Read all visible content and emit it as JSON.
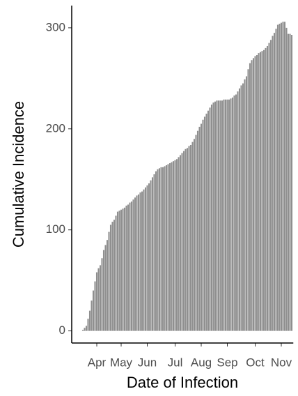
{
  "chart_data": {
    "type": "bar",
    "x_label": "Date of Infection",
    "y_label": "Cumulative Incidence",
    "categories": [
      null,
      null,
      null,
      null,
      null,
      null,
      null,
      null,
      "Apr",
      null,
      null,
      null,
      null,
      null,
      null,
      null,
      null,
      null,
      null,
      null,
      null,
      null,
      "May",
      null,
      null,
      null,
      null,
      null,
      null,
      null,
      null,
      null,
      null,
      null,
      null,
      null,
      null,
      "Jun",
      null,
      null,
      null,
      null,
      null,
      null,
      null,
      null,
      null,
      null,
      null,
      null,
      null,
      null,
      null,
      "Jul",
      null,
      null,
      null,
      null,
      null,
      null,
      null,
      null,
      null,
      null,
      null,
      null,
      null,
      null,
      "Aug",
      null,
      null,
      null,
      null,
      null,
      null,
      null,
      null,
      null,
      null,
      null,
      null,
      null,
      null,
      "Sep",
      null,
      null,
      null,
      null,
      null,
      null,
      null,
      null,
      null,
      null,
      null,
      null,
      null,
      null,
      null,
      "Oct",
      null,
      null,
      null,
      null,
      null,
      null,
      null,
      null,
      null,
      null,
      null,
      null,
      null,
      null,
      "Nov",
      null,
      null,
      null,
      null,
      null,
      null
    ],
    "values": [
      1,
      3,
      5,
      12,
      20,
      30,
      40,
      49,
      58,
      62,
      65,
      72,
      80,
      85,
      90,
      98,
      105,
      108,
      110,
      114,
      118,
      119,
      120,
      121,
      122,
      124,
      125,
      127,
      128,
      130,
      132,
      134,
      135,
      137,
      138,
      140,
      142,
      144,
      146,
      149,
      152,
      155,
      158,
      160,
      161,
      162,
      162,
      163,
      164,
      165,
      166,
      167,
      168,
      169,
      170,
      172,
      174,
      176,
      178,
      180,
      181,
      183,
      184,
      187,
      190,
      194,
      198,
      202,
      205,
      209,
      212,
      215,
      218,
      221,
      224,
      226,
      227,
      228,
      228,
      228,
      228,
      229,
      229,
      229,
      229,
      230,
      231,
      233,
      234,
      237,
      240,
      243,
      245,
      249,
      252,
      259,
      265,
      268,
      270,
      272,
      273,
      275,
      276,
      277,
      278,
      280,
      282,
      285,
      288,
      292,
      295,
      299,
      303,
      304,
      305,
      306,
      306,
      300,
      294,
      294,
      293
    ],
    "color": "#8f8f8f",
    "ylim": [
      -12,
      322
    ],
    "yticks": [
      0,
      100,
      200,
      300
    ],
    "grid": false
  }
}
